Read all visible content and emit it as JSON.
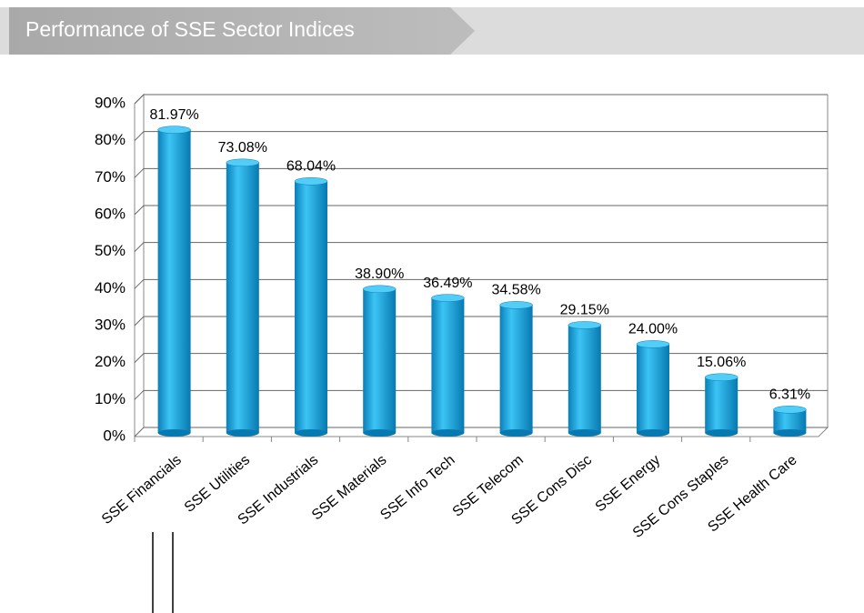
{
  "chart_data": {
    "type": "bar",
    "title": "Performance of SSE Sector Indices",
    "categories": [
      "SSE Financials",
      "SSE Utilities",
      "SSE Industrials",
      "SSE Materials",
      "SSE Info Tech",
      "SSE Telecom",
      "SSE Cons Disc",
      "SSE Energy",
      "SSE Cons Staples",
      "SSE Health Care"
    ],
    "values": [
      81.97,
      73.08,
      68.04,
      38.9,
      36.49,
      34.58,
      29.15,
      24.0,
      15.06,
      6.31
    ],
    "value_labels": [
      "81.97%",
      "73.08%",
      "68.04%",
      "38.90%",
      "36.49%",
      "34.58%",
      "29.15%",
      "24.00%",
      "15.06%",
      "6.31%"
    ],
    "color": "#0ea5e0",
    "ylim": [
      0,
      90
    ],
    "yticks": [
      {
        "value": 0,
        "label": "0%"
      },
      {
        "value": 10,
        "label": "10%"
      },
      {
        "value": 20,
        "label": "20%"
      },
      {
        "value": 30,
        "label": "30%"
      },
      {
        "value": 40,
        "label": "40%"
      },
      {
        "value": 50,
        "label": "50%"
      },
      {
        "value": 60,
        "label": "60%"
      },
      {
        "value": 70,
        "label": "70%"
      },
      {
        "value": 80,
        "label": "80%"
      },
      {
        "value": 90,
        "label": "90%"
      }
    ],
    "grid": true
  }
}
